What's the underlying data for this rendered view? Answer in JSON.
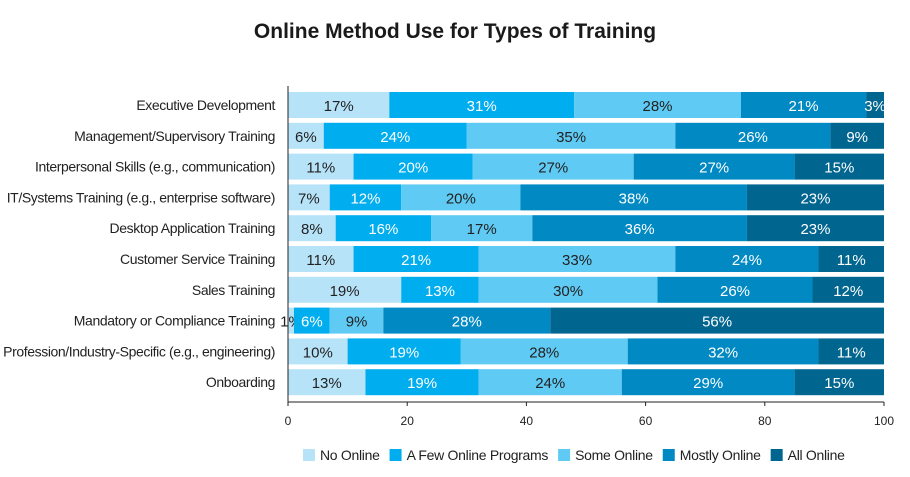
{
  "chart_data": {
    "type": "bar",
    "orientation": "horizontal",
    "stacked": true,
    "title": "Online Method Use for Types of Training",
    "categories": [
      "Executive Development",
      "Management/Supervisory Training",
      "Interpersonal Skills (e.g., communication)",
      "IT/Systems Training (e.g., enterprise software)",
      "Desktop Application Training",
      "Customer Service Training",
      "Sales Training",
      "Mandatory or Compliance Training",
      "Profession/Industry-Specific (e.g., engineering)",
      "Onboarding"
    ],
    "series": [
      {
        "name": "No Online",
        "color": "#b7e3f9",
        "values": [
          17,
          6,
          11,
          7,
          8,
          11,
          19,
          1,
          10,
          13
        ]
      },
      {
        "name": "A Few Online Programs",
        "color": "#00adee",
        "values": [
          31,
          24,
          20,
          12,
          16,
          21,
          13,
          6,
          19,
          19
        ]
      },
      {
        "name": "Some Online",
        "color": "#5fcaf4",
        "values": [
          28,
          35,
          27,
          20,
          17,
          33,
          30,
          9,
          28,
          24
        ]
      },
      {
        "name": "Mostly Online",
        "color": "#0089c2",
        "values": [
          21,
          26,
          27,
          38,
          36,
          24,
          26,
          28,
          32,
          29
        ]
      },
      {
        "name": "All Online",
        "color": "#00658f",
        "values": [
          3,
          9,
          15,
          23,
          23,
          11,
          12,
          56,
          11,
          15
        ]
      }
    ],
    "xlim": [
      0,
      100
    ],
    "xticks": [
      0,
      20,
      40,
      60,
      80,
      100
    ],
    "legend": "bottom",
    "grid": false
  }
}
